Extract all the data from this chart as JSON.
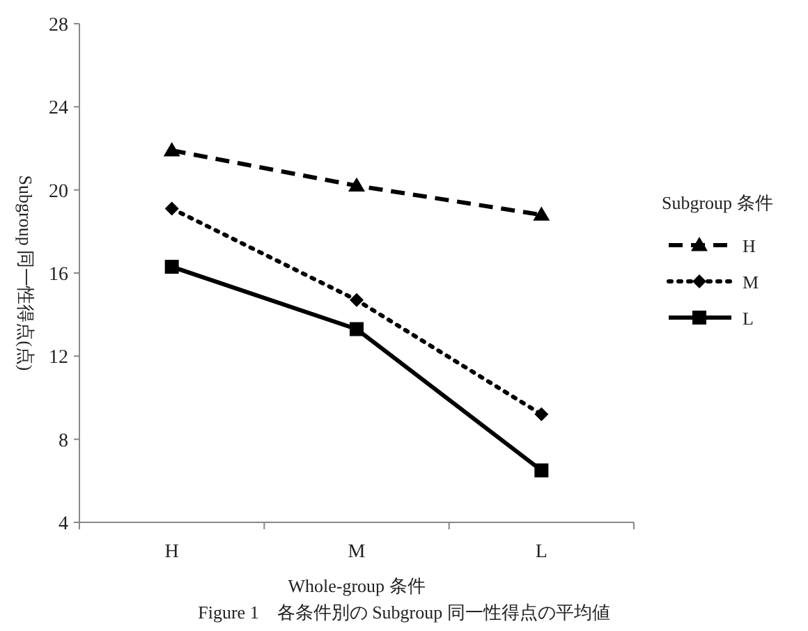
{
  "chart_data": {
    "type": "line",
    "title": "Figure 1　各条件別の Subgroup 同一性得点の平均値",
    "xlabel": "Whole-group 条件",
    "ylabel": "Subgroup 同一性得点(点)",
    "legend_title": "Subgroup 条件",
    "categories": [
      "H",
      "M",
      "L"
    ],
    "series": [
      {
        "name": "H",
        "color": "#000000",
        "values": [
          21.9,
          20.2,
          18.8
        ],
        "marker": "triangle",
        "line_style": "dashed"
      },
      {
        "name": "M",
        "color": "#000000",
        "values": [
          19.1,
          14.7,
          9.2
        ],
        "marker": "diamond",
        "line_style": "dotted"
      },
      {
        "name": "L",
        "color": "#000000",
        "values": [
          16.3,
          13.3,
          6.5
        ],
        "marker": "square",
        "line_style": "solid"
      }
    ],
    "ylim": [
      4,
      28
    ],
    "yticks": [
      4,
      8,
      12,
      16,
      20,
      24,
      28
    ],
    "grid": false,
    "legend": "right"
  }
}
